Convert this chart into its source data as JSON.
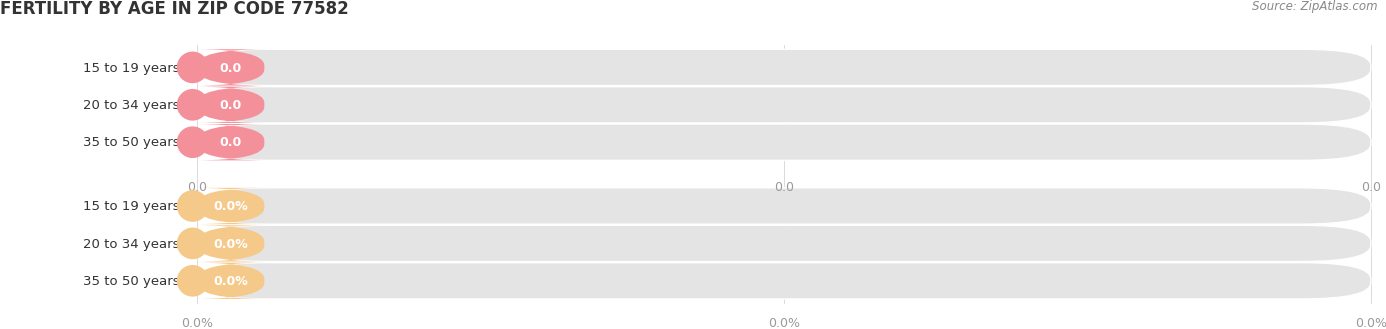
{
  "title": "FERTILITY BY AGE IN ZIP CODE 77582",
  "source": "Source: ZipAtlas.com",
  "categories": [
    "15 to 19 years",
    "20 to 34 years",
    "35 to 50 years"
  ],
  "group1": {
    "values": [
      0.0,
      0.0,
      0.0
    ],
    "bar_color": "#f4909a",
    "label_format": ":.1f",
    "axis_labels": [
      "0.0",
      "0.0",
      "0.0"
    ]
  },
  "group2": {
    "values": [
      0.0,
      0.0,
      0.0
    ],
    "bar_color": "#f5c98a",
    "label_format": ":.1f%",
    "axis_labels": [
      "0.0%",
      "0.0%",
      "0.0%"
    ]
  },
  "background_color": "#ffffff",
  "bar_bg_color": "#e4e4e4",
  "title_fontsize": 12,
  "label_fontsize": 9.5,
  "tick_fontsize": 9,
  "source_fontsize": 8.5,
  "axis_tick_color": "#999999",
  "text_color": "#333333",
  "source_color": "#888888",
  "value_label_color": "#ffffff"
}
